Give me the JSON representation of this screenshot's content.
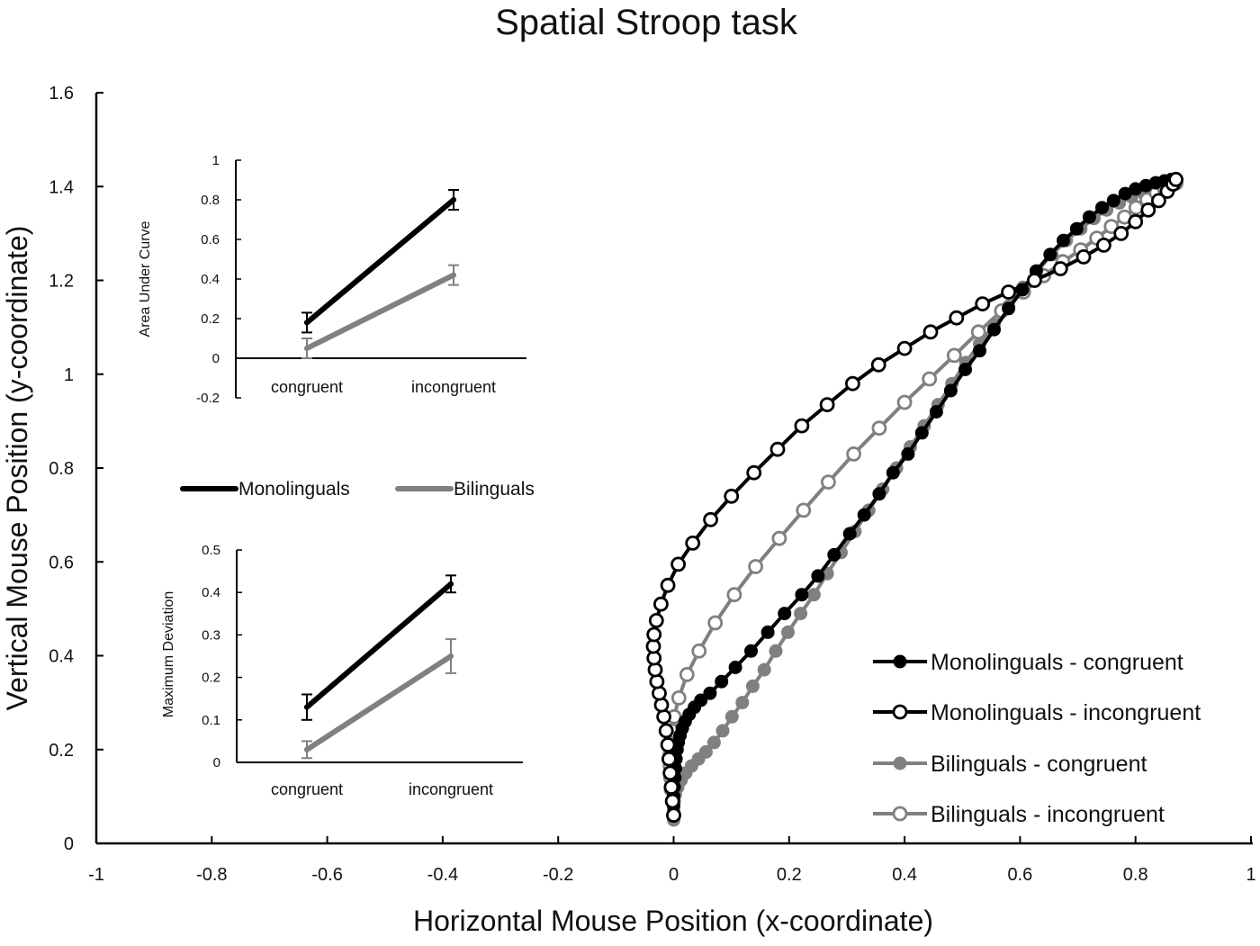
{
  "chart_data": [
    {
      "type": "line",
      "id": "main",
      "title": "Spatial Stroop task",
      "xlabel": "Horizontal Mouse Position (x-coordinate)",
      "ylabel": "Vertical Mouse Position (y-coordinate)",
      "xlim": [
        -1,
        1
      ],
      "ylim": [
        0,
        1.6
      ],
      "xticks": [
        "-1",
        "-0.8",
        "-0.6",
        "-0.4",
        "-0.2",
        "0",
        "0.2",
        "0.4",
        "0.6",
        "0.8",
        "1"
      ],
      "yticks": [
        "0",
        "0.2",
        "0.4",
        "0.6",
        "0.8",
        "1",
        "1.2",
        "1.4",
        "1.6"
      ],
      "grid": false,
      "legend_position": "lower right",
      "series": [
        {
          "name": "Monolinguals - congruent",
          "line_color": "#000000",
          "marker": "filled",
          "marker_fill": "#000000",
          "points": [
            [
              0.0,
              0.06
            ],
            [
              0.0,
              0.08
            ],
            [
              0.0,
              0.1
            ],
            [
              0.001,
              0.12
            ],
            [
              0.002,
              0.14
            ],
            [
              0.003,
              0.16
            ],
            [
              0.004,
              0.18
            ],
            [
              0.006,
              0.2
            ],
            [
              0.008,
              0.215
            ],
            [
              0.011,
              0.23
            ],
            [
              0.015,
              0.245
            ],
            [
              0.02,
              0.26
            ],
            [
              0.027,
              0.275
            ],
            [
              0.036,
              0.29
            ],
            [
              0.047,
              0.305
            ],
            [
              0.063,
              0.32
            ],
            [
              0.083,
              0.345
            ],
            [
              0.107,
              0.375
            ],
            [
              0.134,
              0.41
            ],
            [
              0.163,
              0.45
            ],
            [
              0.192,
              0.49
            ],
            [
              0.222,
              0.53
            ],
            [
              0.25,
              0.57
            ],
            [
              0.278,
              0.615
            ],
            [
              0.305,
              0.66
            ],
            [
              0.33,
              0.7
            ],
            [
              0.356,
              0.745
            ],
            [
              0.38,
              0.79
            ],
            [
              0.406,
              0.83
            ],
            [
              0.43,
              0.875
            ],
            [
              0.455,
              0.92
            ],
            [
              0.48,
              0.965
            ],
            [
              0.505,
              1.01
            ],
            [
              0.53,
              1.05
            ],
            [
              0.555,
              1.095
            ],
            [
              0.58,
              1.14
            ],
            [
              0.604,
              1.18
            ],
            [
              0.628,
              1.22
            ],
            [
              0.652,
              1.255
            ],
            [
              0.675,
              1.285
            ],
            [
              0.698,
              1.31
            ],
            [
              0.72,
              1.335
            ],
            [
              0.742,
              1.355
            ],
            [
              0.762,
              1.37
            ],
            [
              0.782,
              1.385
            ],
            [
              0.8,
              1.395
            ],
            [
              0.818,
              1.402
            ],
            [
              0.835,
              1.408
            ],
            [
              0.85,
              1.412
            ],
            [
              0.862,
              1.415
            ],
            [
              0.87,
              1.417
            ]
          ]
        },
        {
          "name": "Monolinguals - incongruent",
          "line_color": "#000000",
          "marker": "open",
          "marker_fill": "#ffffff",
          "points": [
            [
              0.0,
              0.06
            ],
            [
              -0.002,
              0.09
            ],
            [
              -0.004,
              0.12
            ],
            [
              -0.006,
              0.15
            ],
            [
              -0.008,
              0.18
            ],
            [
              -0.01,
              0.21
            ],
            [
              -0.013,
              0.24
            ],
            [
              -0.017,
              0.27
            ],
            [
              -0.021,
              0.295
            ],
            [
              -0.025,
              0.32
            ],
            [
              -0.029,
              0.345
            ],
            [
              -0.032,
              0.37
            ],
            [
              -0.034,
              0.395
            ],
            [
              -0.035,
              0.42
            ],
            [
              -0.034,
              0.445
            ],
            [
              -0.03,
              0.475
            ],
            [
              -0.022,
              0.51
            ],
            [
              -0.01,
              0.55
            ],
            [
              0.008,
              0.595
            ],
            [
              0.033,
              0.64
            ],
            [
              0.064,
              0.69
            ],
            [
              0.1,
              0.74
            ],
            [
              0.139,
              0.79
            ],
            [
              0.18,
              0.84
            ],
            [
              0.222,
              0.89
            ],
            [
              0.266,
              0.935
            ],
            [
              0.31,
              0.98
            ],
            [
              0.355,
              1.02
            ],
            [
              0.4,
              1.055
            ],
            [
              0.445,
              1.09
            ],
            [
              0.49,
              1.12
            ],
            [
              0.535,
              1.15
            ],
            [
              0.58,
              1.175
            ],
            [
              0.625,
              1.2
            ],
            [
              0.67,
              1.225
            ],
            [
              0.71,
              1.25
            ],
            [
              0.745,
              1.275
            ],
            [
              0.775,
              1.3
            ],
            [
              0.8,
              1.325
            ],
            [
              0.822,
              1.35
            ],
            [
              0.84,
              1.37
            ],
            [
              0.855,
              1.39
            ],
            [
              0.865,
              1.405
            ],
            [
              0.87,
              1.415
            ]
          ]
        },
        {
          "name": "Bilinguals - congruent",
          "line_color": "#808080",
          "marker": "filled",
          "marker_fill": "#808080",
          "points": [
            [
              0.0,
              0.05
            ],
            [
              0.0,
              0.07
            ],
            [
              0.001,
              0.09
            ],
            [
              0.003,
              0.105
            ],
            [
              0.007,
              0.12
            ],
            [
              0.013,
              0.135
            ],
            [
              0.021,
              0.15
            ],
            [
              0.031,
              0.165
            ],
            [
              0.043,
              0.18
            ],
            [
              0.056,
              0.195
            ],
            [
              0.07,
              0.215
            ],
            [
              0.085,
              0.24
            ],
            [
              0.101,
              0.27
            ],
            [
              0.119,
              0.3
            ],
            [
              0.137,
              0.335
            ],
            [
              0.157,
              0.37
            ],
            [
              0.177,
              0.41
            ],
            [
              0.198,
              0.45
            ],
            [
              0.22,
              0.49
            ],
            [
              0.243,
              0.53
            ],
            [
              0.266,
              0.575
            ],
            [
              0.29,
              0.62
            ],
            [
              0.314,
              0.665
            ],
            [
              0.338,
              0.71
            ],
            [
              0.362,
              0.755
            ],
            [
              0.386,
              0.8
            ],
            [
              0.41,
              0.845
            ],
            [
              0.434,
              0.89
            ],
            [
              0.458,
              0.935
            ],
            [
              0.482,
              0.98
            ],
            [
              0.506,
              1.025
            ],
            [
              0.53,
              1.065
            ],
            [
              0.555,
              1.105
            ],
            [
              0.58,
              1.145
            ],
            [
              0.605,
              1.185
            ],
            [
              0.63,
              1.22
            ],
            [
              0.655,
              1.255
            ],
            [
              0.68,
              1.285
            ],
            [
              0.705,
              1.31
            ],
            [
              0.728,
              1.332
            ],
            [
              0.75,
              1.35
            ],
            [
              0.772,
              1.365
            ],
            [
              0.793,
              1.378
            ],
            [
              0.812,
              1.388
            ],
            [
              0.83,
              1.396
            ],
            [
              0.846,
              1.402
            ],
            [
              0.86,
              1.406
            ],
            [
              0.87,
              1.408
            ]
          ]
        },
        {
          "name": "Bilinguals - incongruent",
          "line_color": "#808080",
          "marker": "open",
          "marker_fill": "#ffffff",
          "points": [
            [
              0.0,
              0.06
            ],
            [
              -0.002,
              0.09
            ],
            [
              -0.004,
              0.115
            ],
            [
              -0.005,
              0.14
            ],
            [
              -0.006,
              0.165
            ],
            [
              -0.006,
              0.19
            ],
            [
              -0.005,
              0.215
            ],
            [
              -0.003,
              0.24
            ],
            [
              0.001,
              0.27
            ],
            [
              0.009,
              0.31
            ],
            [
              0.023,
              0.36
            ],
            [
              0.044,
              0.41
            ],
            [
              0.072,
              0.47
            ],
            [
              0.105,
              0.53
            ],
            [
              0.142,
              0.59
            ],
            [
              0.183,
              0.65
            ],
            [
              0.225,
              0.71
            ],
            [
              0.268,
              0.77
            ],
            [
              0.312,
              0.83
            ],
            [
              0.356,
              0.885
            ],
            [
              0.4,
              0.94
            ],
            [
              0.443,
              0.99
            ],
            [
              0.486,
              1.04
            ],
            [
              0.528,
              1.09
            ],
            [
              0.568,
              1.135
            ],
            [
              0.606,
              1.175
            ],
            [
              0.641,
              1.21
            ],
            [
              0.674,
              1.24
            ],
            [
              0.705,
              1.265
            ],
            [
              0.733,
              1.29
            ],
            [
              0.758,
              1.315
            ],
            [
              0.781,
              1.335
            ],
            [
              0.801,
              1.355
            ],
            [
              0.82,
              1.372
            ],
            [
              0.836,
              1.386
            ],
            [
              0.85,
              1.396
            ],
            [
              0.862,
              1.403
            ],
            [
              0.87,
              1.407
            ]
          ]
        }
      ]
    },
    {
      "type": "line",
      "id": "inset_auc",
      "title": "",
      "xlabel": "",
      "ylabel": "Area Under Curve",
      "categories": [
        "congruent",
        "incongruent"
      ],
      "ylim": [
        -0.2,
        1
      ],
      "yticks": [
        "-0.2",
        "0",
        "0.2",
        "0.4",
        "0.6",
        "0.8",
        "1"
      ],
      "legend": [
        "Monolinguals",
        "Bilinguals"
      ],
      "series": [
        {
          "name": "Monolinguals",
          "color": "#000000",
          "values": [
            0.18,
            0.8
          ],
          "error": [
            0.05,
            0.05
          ]
        },
        {
          "name": "Bilinguals",
          "color": "#808080",
          "values": [
            0.05,
            0.42
          ],
          "error": [
            0.05,
            0.05
          ]
        }
      ]
    },
    {
      "type": "line",
      "id": "inset_md",
      "title": "",
      "xlabel": "",
      "ylabel": "Maximum Deviation",
      "categories": [
        "congruent",
        "incongruent"
      ],
      "ylim": [
        0,
        0.5
      ],
      "yticks": [
        "0",
        "0.1",
        "0.2",
        "0.3",
        "0.4",
        "0.5"
      ],
      "legend": [
        "Monolinguals",
        "Bilinguals"
      ],
      "series": [
        {
          "name": "Monolinguals",
          "color": "#000000",
          "values": [
            0.13,
            0.42
          ],
          "error": [
            0.03,
            0.02
          ]
        },
        {
          "name": "Bilinguals",
          "color": "#808080",
          "values": [
            0.03,
            0.25
          ],
          "error": [
            0.02,
            0.04
          ]
        }
      ]
    }
  ],
  "inset_legend": {
    "items": [
      {
        "label": "Monolinguals",
        "color": "#000000"
      },
      {
        "label": "Bilinguals",
        "color": "#808080"
      }
    ]
  }
}
